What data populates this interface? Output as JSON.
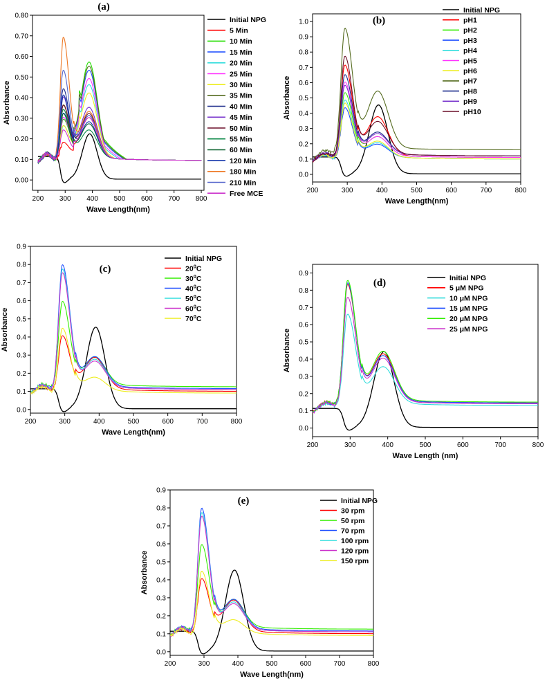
{
  "chart_data": [
    {
      "panel": "(a)",
      "type": "line",
      "xlabel": "Wave Length(nm)",
      "ylabel": "Absorbance",
      "xlim": [
        180,
        810
      ],
      "ylim": [
        -0.05,
        0.8
      ],
      "xticks": [
        200,
        300,
        400,
        500,
        600,
        700,
        800
      ],
      "yticks": [
        0.0,
        0.1,
        0.2,
        0.3,
        0.4,
        0.5,
        0.6,
        0.7,
        0.8
      ],
      "legend_position": "right",
      "series": [
        {
          "name": "Initial NPG",
          "color": "#000000",
          "kind": "npg",
          "peak": 0.22
        },
        {
          "name": "5 Min",
          "color": "#ff0000",
          "kind": "mce",
          "p1": 0.22,
          "p2": 0.25
        },
        {
          "name": "10 Min",
          "color": "#22dd00",
          "kind": "mce",
          "p1": 0.33,
          "p2": 0.52
        },
        {
          "name": "15 Min",
          "color": "#2050ff",
          "kind": "mce",
          "p1": 0.36,
          "p2": 0.48
        },
        {
          "name": "20 Min",
          "color": "#33dddd",
          "kind": "mce",
          "p1": 0.3,
          "p2": 0.41
        },
        {
          "name": "25 Min",
          "color": "#ff33ff",
          "kind": "mce",
          "p1": 0.34,
          "p2": 0.44
        },
        {
          "name": "30 Min",
          "color": "#eeee22",
          "kind": "mce",
          "p1": 0.3,
          "p2": 0.37
        },
        {
          "name": "35 Min",
          "color": "#556b1f",
          "kind": "mce",
          "p1": 0.4,
          "p2": 0.5
        },
        {
          "name": "40 Min",
          "color": "#1a2a8a",
          "kind": "mce",
          "p1": 0.48,
          "p2": 0.26
        },
        {
          "name": "45 Min",
          "color": "#7733cc",
          "kind": "mce",
          "p1": 0.44,
          "p2": 0.3
        },
        {
          "name": "50 Min",
          "color": "#6b0f28",
          "kind": "mce",
          "p1": 0.4,
          "p2": 0.27
        },
        {
          "name": "55 Min",
          "color": "#0f8a4a",
          "kind": "mce",
          "p1": 0.38,
          "p2": 0.19
        },
        {
          "name": "60 Min",
          "color": "#116633",
          "kind": "mce",
          "p1": 0.36,
          "p2": 0.22
        },
        {
          "name": "120 Min",
          "color": "#1133aa",
          "kind": "mce",
          "p1": 0.45,
          "p2": 0.23
        },
        {
          "name": "180 Min",
          "color": "#ee7722",
          "kind": "mce",
          "p1": 0.73,
          "p2": 0.28
        },
        {
          "name": "210 Min",
          "color": "#5566cc",
          "kind": "mce",
          "p1": 0.57,
          "p2": 0.26
        },
        {
          "name": "Free MCE",
          "color": "#cc33cc",
          "kind": "mce",
          "p1": 0.28,
          "p2": 0.25
        }
      ]
    },
    {
      "panel": "(b)",
      "type": "line",
      "xlabel": "Wave Length(nm)",
      "ylabel": "Absorbance",
      "xlim": [
        200,
        800
      ],
      "ylim": [
        -0.05,
        1.05
      ],
      "xticks": [
        200,
        300,
        400,
        500,
        600,
        700,
        800
      ],
      "yticks": [
        0.0,
        0.1,
        0.2,
        0.3,
        0.4,
        0.5,
        0.6,
        0.7,
        0.8,
        0.9,
        1.0
      ],
      "legend_position": "top-right",
      "series": [
        {
          "name": "Initial NPG",
          "color": "#000000",
          "kind": "npg",
          "peak": 0.45
        },
        {
          "name": "pH1",
          "color": "#ff0000",
          "kind": "mce",
          "p1": 0.74,
          "p2": 0.31,
          "tail": 0.03
        },
        {
          "name": "pH2",
          "color": "#33ee00",
          "kind": "mce",
          "p1": 0.56,
          "p2": 0.18,
          "tail": 0.03
        },
        {
          "name": "pH3",
          "color": "#2050ff",
          "kind": "mce",
          "p1": 0.47,
          "p2": 0.14,
          "tail": 0.02
        },
        {
          "name": "pH4",
          "color": "#33dddd",
          "kind": "mce",
          "p1": 0.52,
          "p2": 0.15,
          "tail": 0.02
        },
        {
          "name": "pH5",
          "color": "#ff33ff",
          "kind": "mce",
          "p1": 0.63,
          "p2": 0.18,
          "tail": 0.03
        },
        {
          "name": "pH6",
          "color": "#eeee22",
          "kind": "mce",
          "p1": 0.5,
          "p2": 0.16,
          "tail": 0.02
        },
        {
          "name": "pH7",
          "color": "#556b1f",
          "kind": "mce",
          "p1": 0.94,
          "p2": 0.43,
          "tail": 0.08
        },
        {
          "name": "pH8",
          "color": "#1a2a8a",
          "kind": "mce",
          "p1": 0.67,
          "p2": 0.2,
          "tail": 0.04
        },
        {
          "name": "pH9",
          "color": "#7733cc",
          "kind": "mce",
          "p1": 0.6,
          "p2": 0.19,
          "tail": 0.04
        },
        {
          "name": "pH10",
          "color": "#6b0f28",
          "kind": "mce",
          "p1": 0.79,
          "p2": 0.27,
          "tail": 0.04
        }
      ]
    },
    {
      "panel": "(c)",
      "type": "line",
      "xlabel": "Wave Length(nm)",
      "ylabel": "Absorbance",
      "xlim": [
        200,
        800
      ],
      "ylim": [
        -0.02,
        0.9
      ],
      "xticks": [
        200,
        300,
        400,
        500,
        600,
        700,
        800
      ],
      "yticks": [
        0.0,
        0.1,
        0.2,
        0.3,
        0.4,
        0.5,
        0.6,
        0.7,
        0.8,
        0.9
      ],
      "legend_position": "top-right",
      "series": [
        {
          "name": "Initial NPG",
          "color": "#000000",
          "kind": "npg",
          "peak": 0.45
        },
        {
          "name": "20⁰C",
          "base": "20",
          "sup": "0",
          "suffix": "C",
          "color": "#ff0000",
          "kind": "mce",
          "p1": 0.44,
          "p2": 0.23,
          "tail": 0.02
        },
        {
          "name": "30⁰C",
          "base": "30",
          "sup": "0",
          "suffix": "C",
          "color": "#33ee00",
          "kind": "mce",
          "p1": 0.61,
          "p2": 0.21,
          "tail": 0.045
        },
        {
          "name": "40⁰C",
          "base": "40",
          "sup": "0",
          "suffix": "C",
          "color": "#2050ff",
          "kind": "mce",
          "p1": 0.82,
          "p2": 0.22,
          "tail": 0.035
        },
        {
          "name": "50⁰C",
          "base": "50",
          "sup": "0",
          "suffix": "C",
          "color": "#33dddd",
          "kind": "mce",
          "p1": 0.8,
          "p2": 0.21,
          "tail": 0.03
        },
        {
          "name": "60⁰C",
          "base": "60",
          "sup": "0",
          "suffix": "C",
          "color": "#cc33cc",
          "kind": "mce",
          "p1": 0.78,
          "p2": 0.2,
          "tail": 0.03
        },
        {
          "name": "70⁰C",
          "base": "70",
          "sup": "0",
          "suffix": "C",
          "color": "#eeee22",
          "kind": "mce",
          "p1": 0.49,
          "p2": 0.13,
          "tail": 0.01
        }
      ]
    },
    {
      "panel": "(d)",
      "type": "line",
      "xlabel": "Wave Length (nm)",
      "ylabel": "Absorbance",
      "xlim": [
        200,
        800
      ],
      "ylim": [
        -0.05,
        0.95
      ],
      "xticks": [
        200,
        300,
        400,
        500,
        600,
        700,
        800
      ],
      "yticks": [
        0.0,
        0.1,
        0.2,
        0.3,
        0.4,
        0.5,
        0.6,
        0.7,
        0.8,
        0.9
      ],
      "legend_position": "top-right",
      "series": [
        {
          "name": "Initial NPG",
          "color": "#000000",
          "kind": "npg",
          "peak": 0.44
        },
        {
          "name": "5  μM NPG",
          "color": "#ff0000",
          "kind": "mce",
          "p1": 0.83,
          "p2": 0.33,
          "tail": 0.065
        },
        {
          "name": "10 μM NPG",
          "color": "#33dddd",
          "kind": "mce",
          "p1": 0.67,
          "p2": 0.27,
          "tail": 0.05
        },
        {
          "name": "15 μM NPG",
          "color": "#2050ff",
          "kind": "mce",
          "p1": 0.84,
          "p2": 0.32,
          "tail": 0.065
        },
        {
          "name": "20 μM NPG",
          "color": "#33ee00",
          "kind": "mce",
          "p1": 0.85,
          "p2": 0.34,
          "tail": 0.07
        },
        {
          "name": "25 μM NPG",
          "color": "#cc33cc",
          "kind": "mce",
          "p1": 0.76,
          "p2": 0.31,
          "tail": 0.06
        }
      ]
    },
    {
      "panel": "(e)",
      "type": "line",
      "xlabel": "Wave Length(nm)",
      "ylabel": "Absorbance",
      "xlim": [
        200,
        800
      ],
      "ylim": [
        -0.02,
        0.9
      ],
      "xticks": [
        200,
        300,
        400,
        500,
        600,
        700,
        800
      ],
      "yticks": [
        0.0,
        0.1,
        0.2,
        0.3,
        0.4,
        0.5,
        0.6,
        0.7,
        0.8,
        0.9
      ],
      "legend_position": "top-right",
      "series": [
        {
          "name": "Initial NPG",
          "color": "#000000",
          "kind": "npg",
          "peak": 0.45
        },
        {
          "name": "30 rpm",
          "color": "#ff0000",
          "kind": "mce",
          "p1": 0.44,
          "p2": 0.23,
          "tail": 0.02
        },
        {
          "name": "50 rpm",
          "color": "#33ee00",
          "kind": "mce",
          "p1": 0.61,
          "p2": 0.21,
          "tail": 0.045
        },
        {
          "name": "70 rpm",
          "color": "#2050ff",
          "kind": "mce",
          "p1": 0.82,
          "p2": 0.22,
          "tail": 0.035
        },
        {
          "name": "100 rpm",
          "color": "#33dddd",
          "kind": "mce",
          "p1": 0.8,
          "p2": 0.21,
          "tail": 0.03
        },
        {
          "name": "120 rpm",
          "color": "#cc33cc",
          "kind": "mce",
          "p1": 0.78,
          "p2": 0.2,
          "tail": 0.03
        },
        {
          "name": "150 rpm",
          "color": "#eeee22",
          "kind": "mce",
          "p1": 0.49,
          "p2": 0.13,
          "tail": 0.01
        }
      ]
    }
  ]
}
